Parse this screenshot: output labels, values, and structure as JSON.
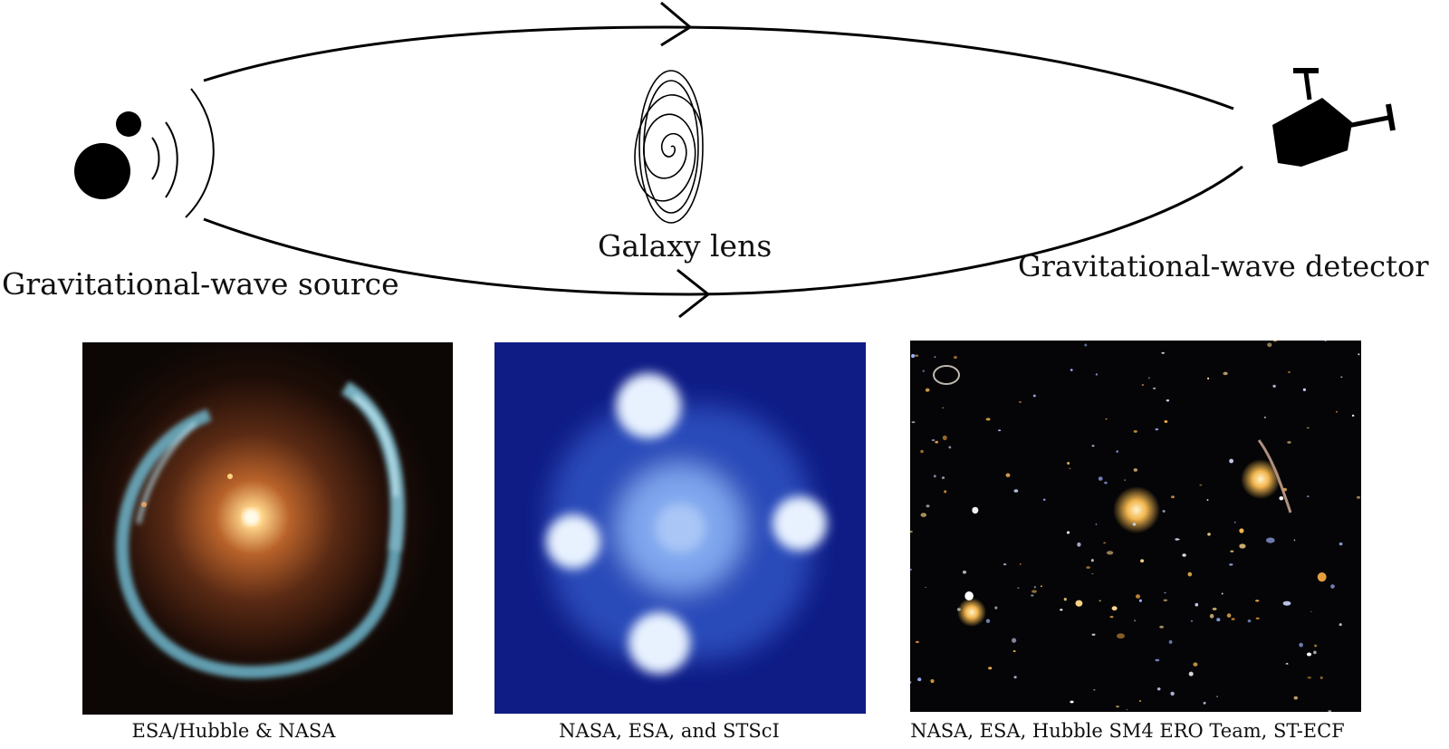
{
  "diagram": {
    "source_label": "Gravitational-wave source",
    "lens_label": "Galaxy lens",
    "detector_label": "Gravitational-wave detector"
  },
  "panels": [
    {
      "id": "einstein-ring",
      "credit": "ESA/Hubble & NASA"
    },
    {
      "id": "einstein-cross",
      "credit": "NASA, ESA, and STScI"
    },
    {
      "id": "galaxy-cluster",
      "credit": "NASA, ESA, Hubble SM4 ERO Team, ST-ECF"
    }
  ],
  "colors": {
    "ring_glow": "#ffd58a",
    "ring_arc": "#8fd8ee",
    "cross_background": "#0f1c86",
    "cross_blob": "#e8f2ff",
    "cluster_background": "#050507",
    "cluster_galaxy": "#f2b64e"
  }
}
